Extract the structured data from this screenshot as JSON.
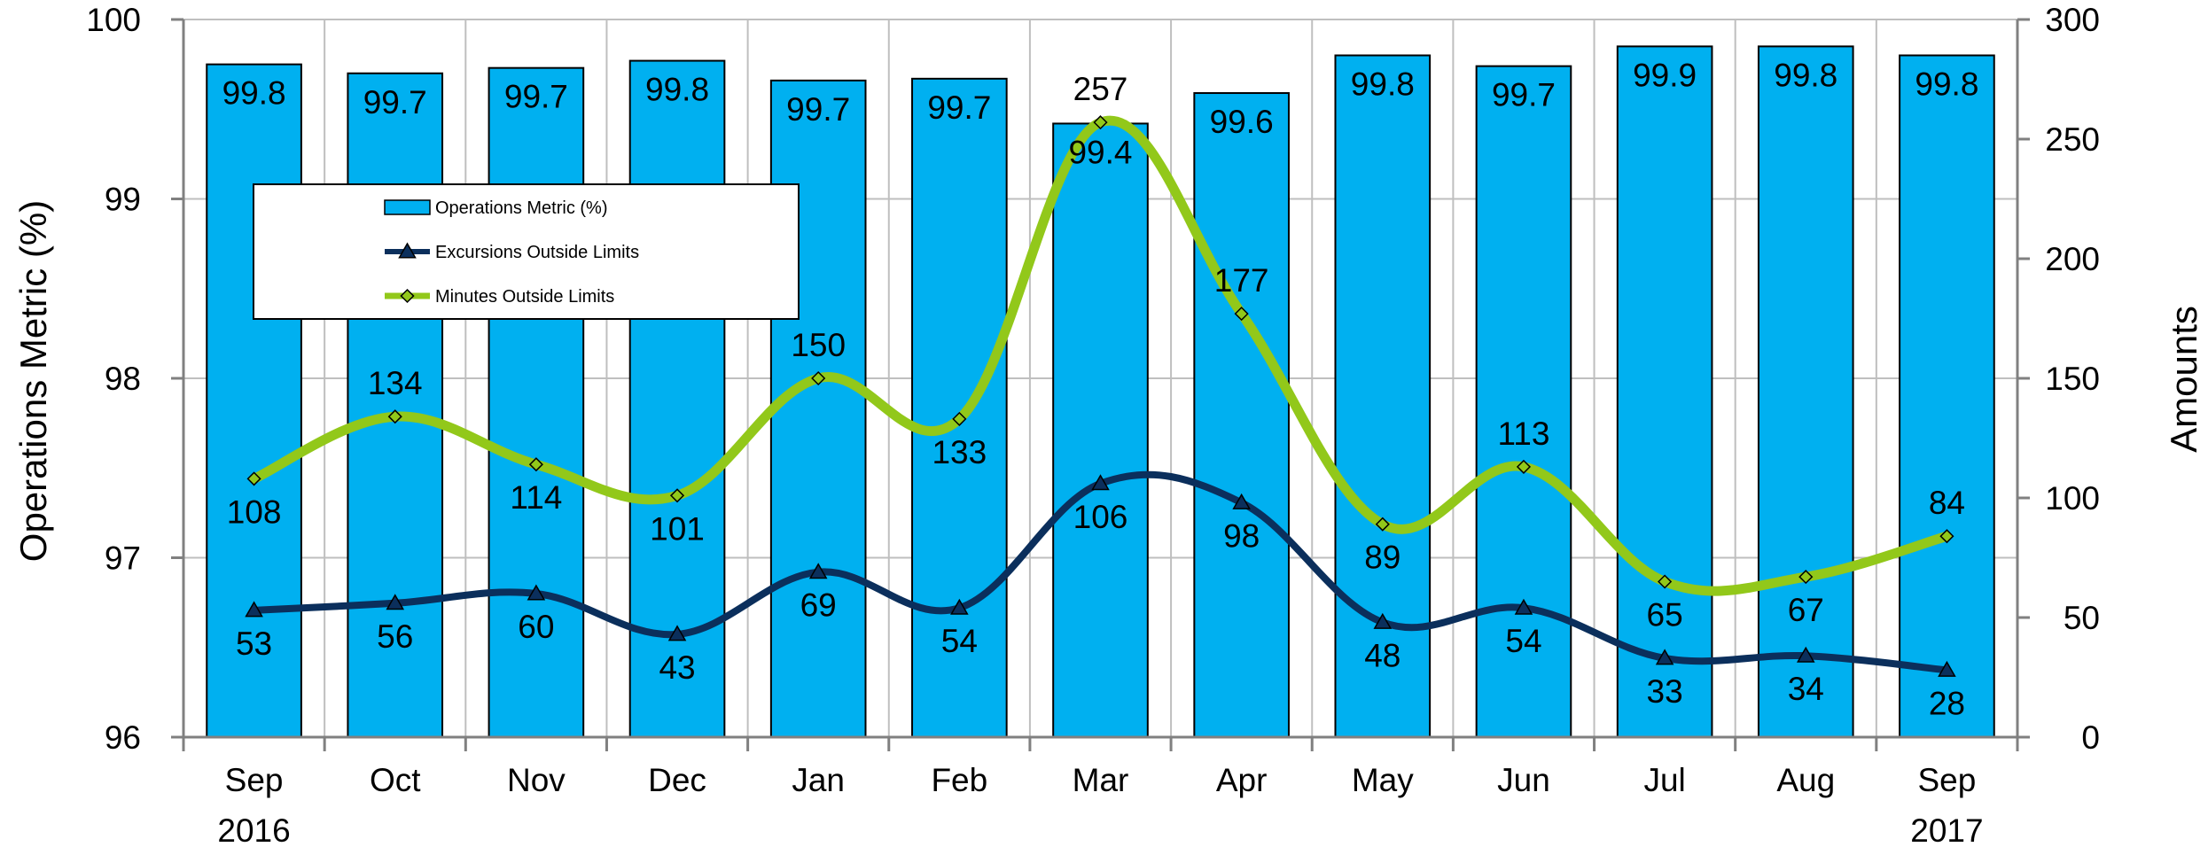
{
  "chart_data": {
    "type": "bar",
    "categories": [
      "Sep",
      "Oct",
      "Nov",
      "Dec",
      "Jan",
      "Feb",
      "Mar",
      "Apr",
      "May",
      "Jun",
      "Jul",
      "Aug",
      "Sep"
    ],
    "year_labels": [
      {
        "index": 0,
        "text": "2016"
      },
      {
        "index": 12,
        "text": "2017"
      }
    ],
    "ylabel": "Operations Metric (%)",
    "y2label": "Amounts",
    "ylim": [
      96,
      100
    ],
    "y2lim": [
      0,
      300
    ],
    "yticks": [
      96,
      97,
      98,
      99,
      100
    ],
    "y2ticks": [
      0,
      50,
      100,
      150,
      200,
      250,
      300
    ],
    "grid": true,
    "legend_position": "upper-left",
    "series": [
      {
        "name": "Operations Metric (%)",
        "type": "bar",
        "axis": "left",
        "color": "#00B0F0",
        "values": [
          99.75,
          99.7,
          99.73,
          99.77,
          99.66,
          99.67,
          99.42,
          99.59,
          99.8,
          99.74,
          99.85,
          99.85,
          99.8
        ],
        "labels": [
          "99.8",
          "99.7",
          "99.7",
          "99.8",
          "99.7",
          "99.7",
          "99.4",
          "99.6",
          "99.8",
          "99.7",
          "99.9",
          "99.8",
          "99.8"
        ]
      },
      {
        "name": "Excursions Outside Limits",
        "type": "line",
        "axis": "right",
        "color": "#0B2F5C",
        "marker": "triangle",
        "values": [
          53,
          56,
          60,
          43,
          69,
          54,
          106,
          98,
          48,
          54,
          33,
          34,
          28
        ],
        "labels": [
          "53",
          "56",
          "60",
          "43",
          "69",
          "54",
          "106",
          "98",
          "48",
          "54",
          "33",
          "34",
          "28"
        ]
      },
      {
        "name": "Minutes Outside Limits",
        "type": "line",
        "axis": "right",
        "color": "#92C81A",
        "marker": "diamond",
        "values": [
          108,
          134,
          114,
          101,
          150,
          133,
          257,
          177,
          89,
          113,
          65,
          67,
          84
        ],
        "labels": [
          "108",
          "134",
          "114",
          "101",
          "150",
          "133",
          "257",
          "177",
          "89",
          "113",
          "65",
          "67",
          "84"
        ]
      }
    ]
  }
}
